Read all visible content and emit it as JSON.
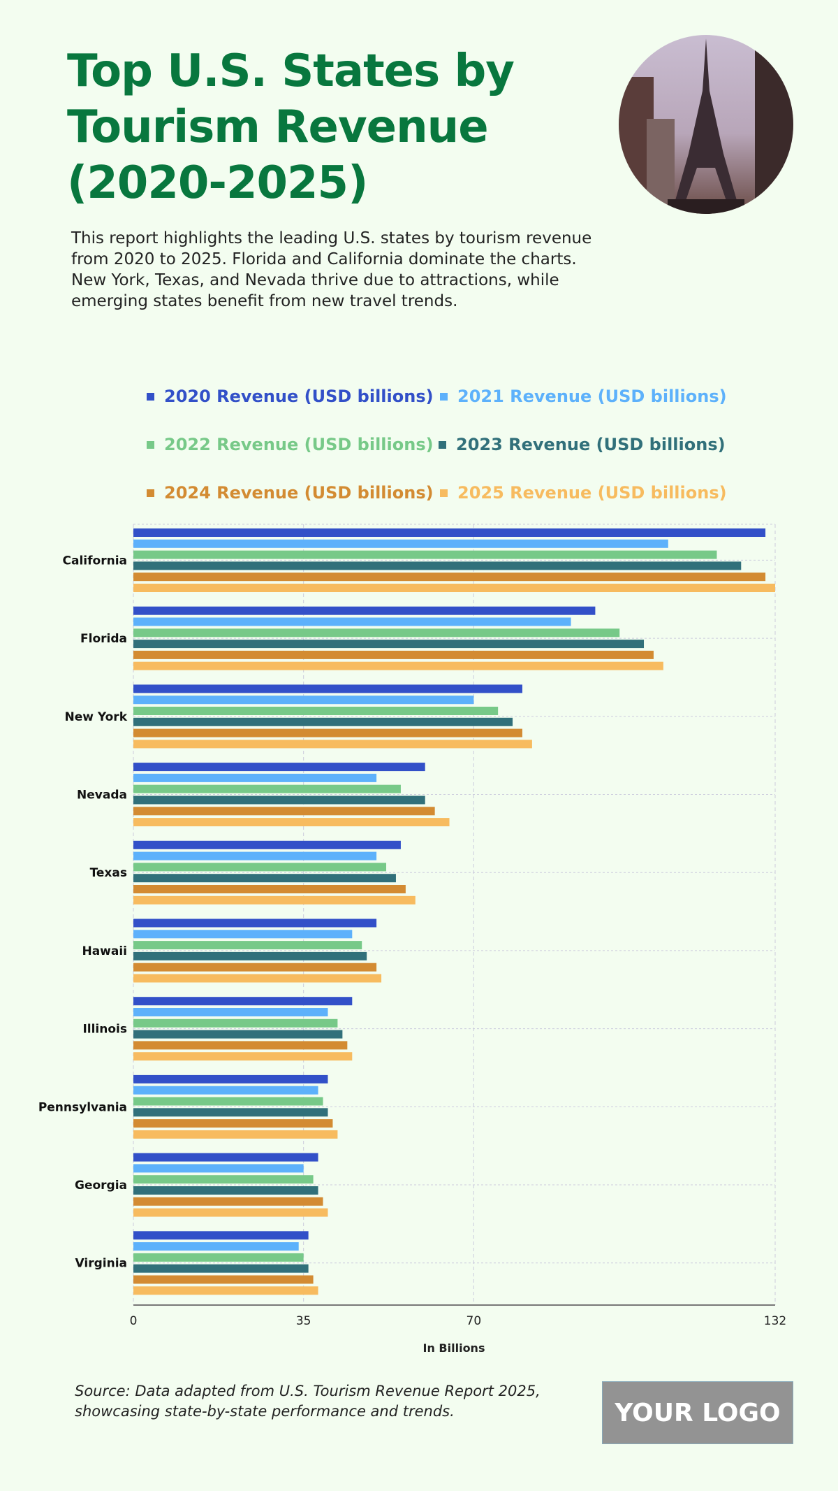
{
  "header": {
    "title": "Top U.S. States by Tourism Revenue (2020-2025)",
    "description": "This report highlights the leading U.S. states by tourism revenue from 2020 to 2025. Florida and California dominate the charts. New York, Texas, and Nevada thrive due to attractions, while emerging states benefit from new travel trends."
  },
  "footer": {
    "source": "Source: Data adapted from U.S. Tourism Revenue Report 2025, showcasing state-by-state performance and trends.",
    "logo": "YOUR LOGO"
  },
  "chart_data": {
    "type": "bar",
    "orientation": "horizontal",
    "categories": [
      "California",
      "Florida",
      "New York",
      "Nevada",
      "Texas",
      "Hawaii",
      "Illinois",
      "Pennsylvania",
      "Georgia",
      "Virginia"
    ],
    "series": [
      {
        "name": "2020 Revenue (USD billions)",
        "color": "#3250c8",
        "values": [
          130,
          95,
          80,
          60,
          55,
          50,
          45,
          40,
          38,
          36
        ]
      },
      {
        "name": "2021 Revenue (USD billions)",
        "color": "#5db1fb",
        "values": [
          110,
          90,
          70,
          50,
          50,
          45,
          40,
          38,
          35,
          34
        ]
      },
      {
        "name": "2022 Revenue (USD billions)",
        "color": "#77c988",
        "values": [
          120,
          100,
          75,
          55,
          52,
          47,
          42,
          39,
          37,
          35
        ]
      },
      {
        "name": "2023 Revenue (USD billions)",
        "color": "#31707a",
        "values": [
          125,
          105,
          78,
          60,
          54,
          48,
          43,
          40,
          38,
          36
        ]
      },
      {
        "name": "2024 Revenue (USD billions)",
        "color": "#d38b32",
        "values": [
          130,
          107,
          80,
          62,
          56,
          50,
          44,
          41,
          39,
          37
        ]
      },
      {
        "name": "2025 Revenue (USD billions)",
        "color": "#f7bb5f",
        "values": [
          132,
          109,
          82,
          65,
          58,
          51,
          45,
          42,
          40,
          38
        ]
      }
    ],
    "xlabel": "In Billions",
    "xticks": [
      0,
      35,
      70,
      132
    ],
    "xlim": [
      0,
      132
    ],
    "grid": true,
    "legend_position": "top"
  }
}
